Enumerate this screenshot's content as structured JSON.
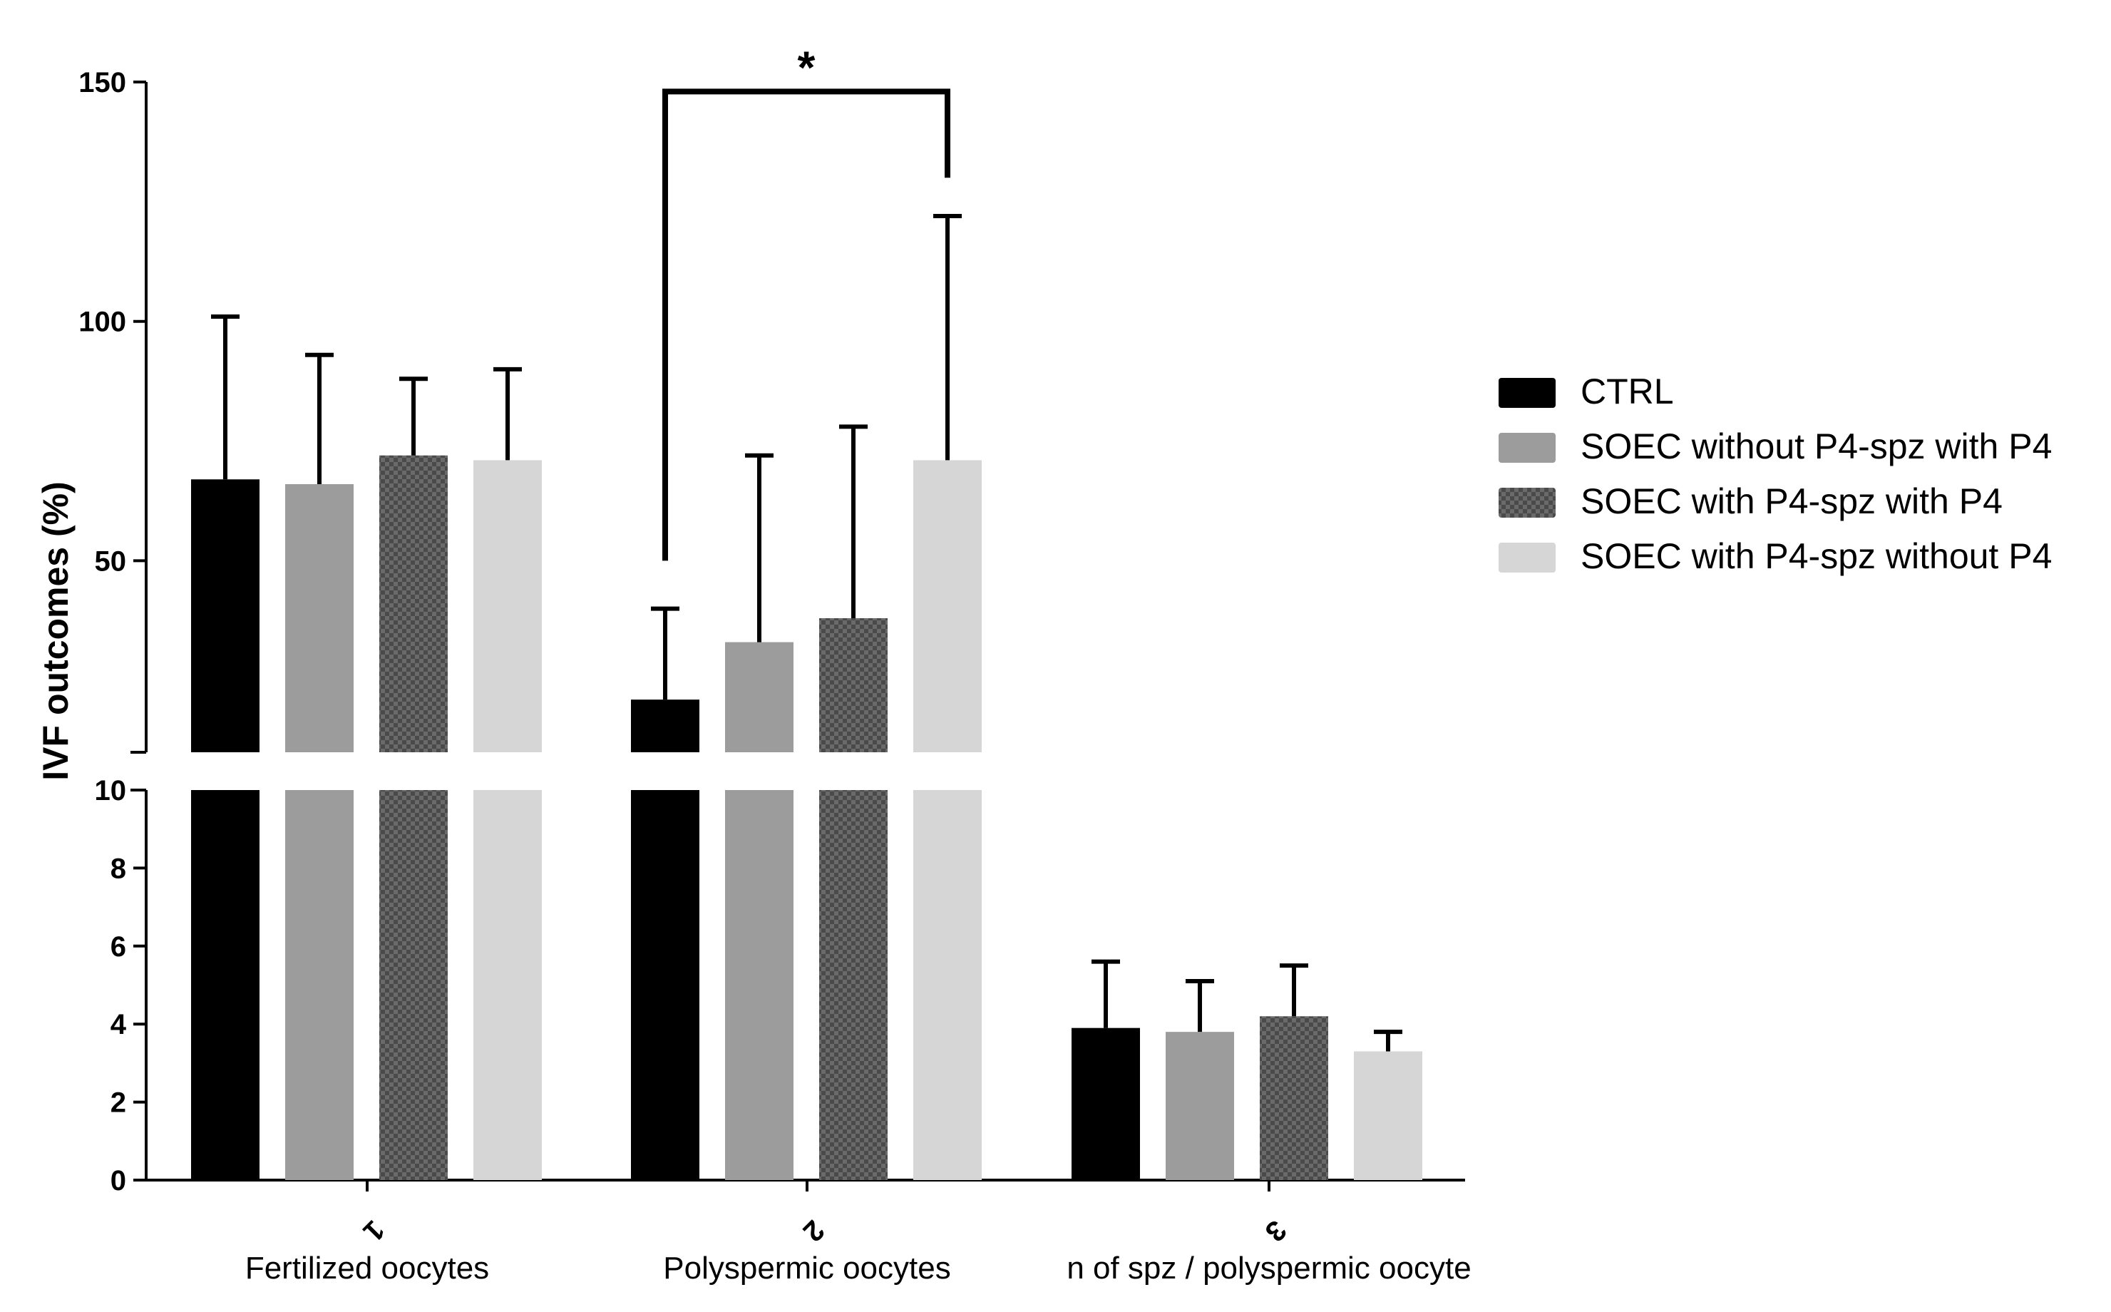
{
  "chart_data": {
    "type": "bar",
    "title": "",
    "ylabel": "IVF outcomes (%)",
    "xlabel": "",
    "axis_break": true,
    "y_lower_range": [
      0,
      10
    ],
    "y_upper_range": [
      10,
      150
    ],
    "y_lower_ticks": [
      "0",
      "2",
      "4",
      "6",
      "8",
      "10"
    ],
    "y_upper_ticks": [
      "50",
      "100",
      "150"
    ],
    "categories": [
      {
        "number": "1",
        "label": "Fertilized oocytes"
      },
      {
        "number": "2",
        "label": "Polyspermic oocytes"
      },
      {
        "number": "3",
        "label": "n of spz / polyspermic oocyte"
      }
    ],
    "series": [
      {
        "name": "CTRL",
        "color": "#000000",
        "pattern": "solid",
        "values": [
          67,
          21,
          3.9
        ],
        "errors": [
          34,
          19,
          1.7
        ]
      },
      {
        "name": "SOEC without P4-spz with P4",
        "color": "#9c9c9c",
        "pattern": "solid",
        "values": [
          66,
          33,
          3.8
        ],
        "errors": [
          27,
          39,
          1.3
        ]
      },
      {
        "name": "SOEC with P4-spz with P4",
        "color": "#555555",
        "pattern": "checker",
        "values": [
          72,
          38,
          4.2
        ],
        "errors": [
          16,
          40,
          1.3
        ]
      },
      {
        "name": "SOEC with P4-spz without P4",
        "color": "#d6d6d6",
        "pattern": "solid",
        "values": [
          71,
          71,
          3.3
        ],
        "errors": [
          19,
          51,
          0.5
        ]
      }
    ],
    "annotations": [
      {
        "text": "*",
        "category": "2",
        "from_series": 0,
        "to_series": 3,
        "bracket_y": [
          50,
          148,
          130
        ]
      }
    ],
    "legend_position": "right"
  }
}
